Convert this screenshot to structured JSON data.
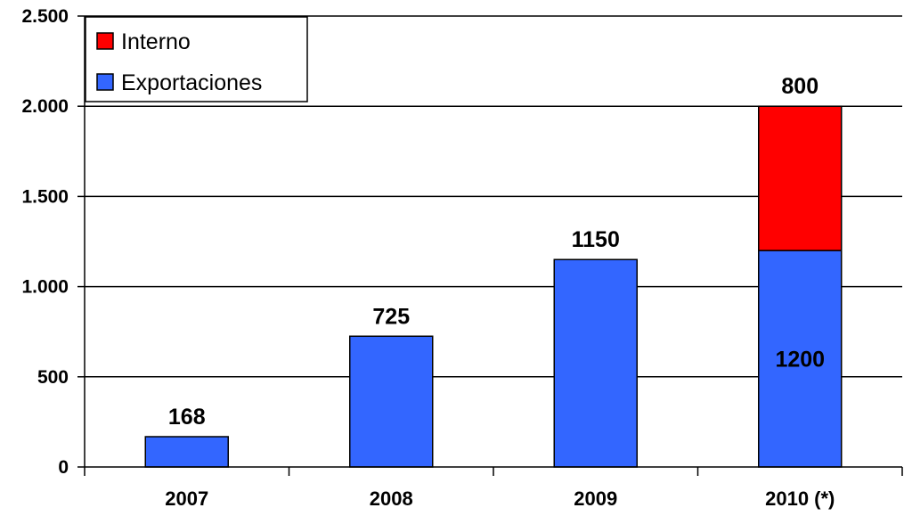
{
  "chart_data": {
    "type": "bar",
    "stacked": true,
    "categories": [
      "2007",
      "2008",
      "2009",
      "2010 (*)"
    ],
    "series": [
      {
        "name": "Exportaciones",
        "color": "#3366ff",
        "values": [
          168,
          725,
          1150,
          1200
        ]
      },
      {
        "name": "Interno",
        "color": "#ff0000",
        "values": [
          0,
          0,
          0,
          800
        ]
      }
    ],
    "data_labels": [
      {
        "category": "2007",
        "series": "Exportaciones",
        "text": "168",
        "placement": "above"
      },
      {
        "category": "2008",
        "series": "Exportaciones",
        "text": "725",
        "placement": "above"
      },
      {
        "category": "2009",
        "series": "Exportaciones",
        "text": "1150",
        "placement": "above"
      },
      {
        "category": "2010 (*)",
        "series": "Exportaciones",
        "text": "1200",
        "placement": "inside"
      },
      {
        "category": "2010 (*)",
        "series": "Interno",
        "text": "800",
        "placement": "above"
      }
    ],
    "ylim": [
      0,
      2500
    ],
    "yticks": [
      {
        "value": 0,
        "label": "0"
      },
      {
        "value": 500,
        "label": "500"
      },
      {
        "value": 1000,
        "label": "1.000"
      },
      {
        "value": 1500,
        "label": "1.500"
      },
      {
        "value": 2000,
        "label": "2.000"
      },
      {
        "value": 2500,
        "label": "2.500"
      }
    ],
    "grid": true,
    "legend": {
      "placement": "top-left",
      "entries": [
        {
          "name": "Interno",
          "color": "#ff0000"
        },
        {
          "name": "Exportaciones",
          "color": "#3366ff"
        }
      ]
    }
  }
}
